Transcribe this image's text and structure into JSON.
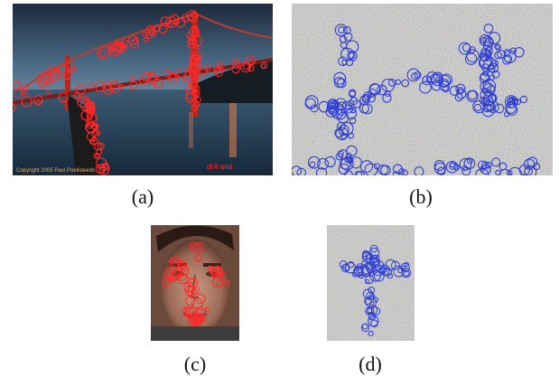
{
  "figure": {
    "panels": [
      {
        "id": "a",
        "caption": "(a)",
        "content": "bridge-photo",
        "marker_color": "#ff2a2a",
        "watermark_left": "Copyright 2005 Paul Poellsteeds",
        "watermark_right": "dl-ll and"
      },
      {
        "id": "b",
        "caption": "(b)",
        "content": "noise-with-circles",
        "marker_color": "#2f3fd6"
      },
      {
        "id": "c",
        "caption": "(c)",
        "content": "face-photo",
        "marker_color": "#ff2a2a"
      },
      {
        "id": "d",
        "caption": "(d)",
        "content": "noise-with-circles",
        "marker_color": "#2f3fd6"
      }
    ]
  }
}
